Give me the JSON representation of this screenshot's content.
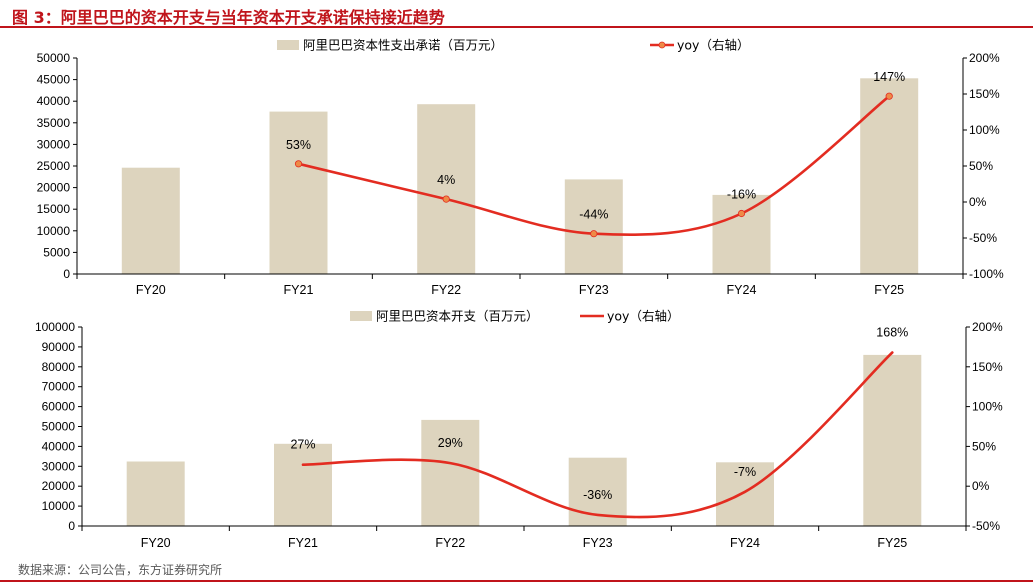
{
  "title": "图 3：阿里巴巴的资本开支与当年资本开支承诺保持接近趋势",
  "source": "数据来源：公司公告，东方证券研究所",
  "colors": {
    "bar": "#ddd4be",
    "line": "#e32c21",
    "marker": "#ee8a47",
    "title": "#c0141b"
  },
  "chart_data": [
    {
      "type": "bar",
      "categories": [
        "FY20",
        "FY21",
        "FY22",
        "FY23",
        "FY24",
        "FY25"
      ],
      "series": [
        {
          "name": "阿里巴巴资本性支出承诺（百万元）",
          "kind": "bar",
          "axis": "left",
          "values": [
            24600,
            37600,
            39300,
            21900,
            18300,
            45300
          ]
        },
        {
          "name": "yoy（右轴）",
          "kind": "line",
          "axis": "right",
          "markers": true,
          "values": [
            null,
            53,
            4,
            -44,
            -16,
            147
          ],
          "labels": [
            "",
            "53%",
            "4%",
            "-44%",
            "-16%",
            "147%"
          ]
        }
      ],
      "left_ticks": [
        "0",
        "5000",
        "10000",
        "15000",
        "20000",
        "25000",
        "30000",
        "35000",
        "40000",
        "45000",
        "50000"
      ],
      "right_ticks": [
        "-100%",
        "-50%",
        "0%",
        "50%",
        "100%",
        "150%",
        "200%"
      ],
      "ylim": [
        0,
        50000
      ],
      "y2lim": [
        -100,
        200
      ],
      "legend": "top"
    },
    {
      "type": "bar",
      "categories": [
        "FY20",
        "FY21",
        "FY22",
        "FY23",
        "FY24",
        "FY25"
      ],
      "series": [
        {
          "name": "阿里巴巴资本开支（百万元）",
          "kind": "bar",
          "axis": "left",
          "values": [
            32400,
            41300,
            53300,
            34300,
            32000,
            86000
          ]
        },
        {
          "name": "yoy（右轴）",
          "kind": "line",
          "axis": "right",
          "markers": false,
          "values": [
            null,
            27,
            29,
            -36,
            -7,
            168
          ],
          "labels": [
            "",
            "27%",
            "29%",
            "-36%",
            "-7%",
            "168%"
          ]
        }
      ],
      "left_ticks": [
        "0",
        "10000",
        "20000",
        "30000",
        "40000",
        "50000",
        "60000",
        "70000",
        "80000",
        "90000",
        "100000"
      ],
      "right_ticks": [
        "-50%",
        "0%",
        "50%",
        "100%",
        "150%",
        "200%"
      ],
      "ylim": [
        0,
        100000
      ],
      "y2lim": [
        -50,
        200
      ],
      "legend": "top"
    }
  ]
}
